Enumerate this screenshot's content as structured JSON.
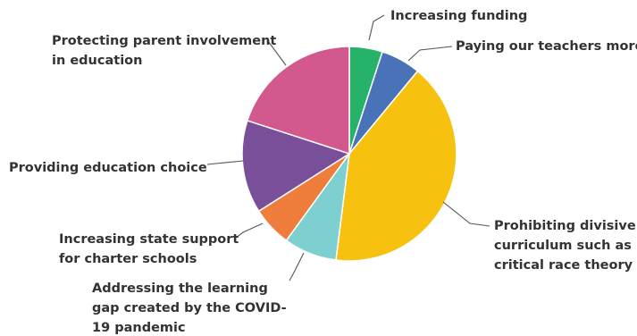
{
  "chart_data": {
    "type": "pie",
    "title": "",
    "slices": [
      {
        "label": "Increasing funding",
        "value": 5,
        "color": "#27b26a"
      },
      {
        "label": "Paying our teachers more",
        "value": 6,
        "color": "#4a72b8"
      },
      {
        "label": "Prohibiting divisive curriculum such as critical race theory",
        "value": 41,
        "color": "#f7c20f"
      },
      {
        "label": "Addressing the learning gap created by the COVID-19 pandemic",
        "value": 8,
        "color": "#7ecfcf"
      },
      {
        "label": "Increasing state support for charter schools",
        "value": 6,
        "color": "#ef7d3c"
      },
      {
        "label": "Providing education choice",
        "value": 14,
        "color": "#7a4f9a"
      },
      {
        "label": "Protecting parent involvement in education",
        "value": 20,
        "color": "#d2588d"
      }
    ],
    "label_lines": [
      [
        "Increasing funding"
      ],
      [
        "Paying our teachers more"
      ],
      [
        "Prohibiting divisive",
        "curriculum such as",
        "critical race theory"
      ],
      [
        "Addressing the learning",
        "gap created by the COVID-",
        "19 pandemic"
      ],
      [
        "Increasing state support",
        "for charter schools"
      ],
      [
        "Providing education choice"
      ],
      [
        "Protecting parent involvement",
        "in education"
      ]
    ]
  }
}
